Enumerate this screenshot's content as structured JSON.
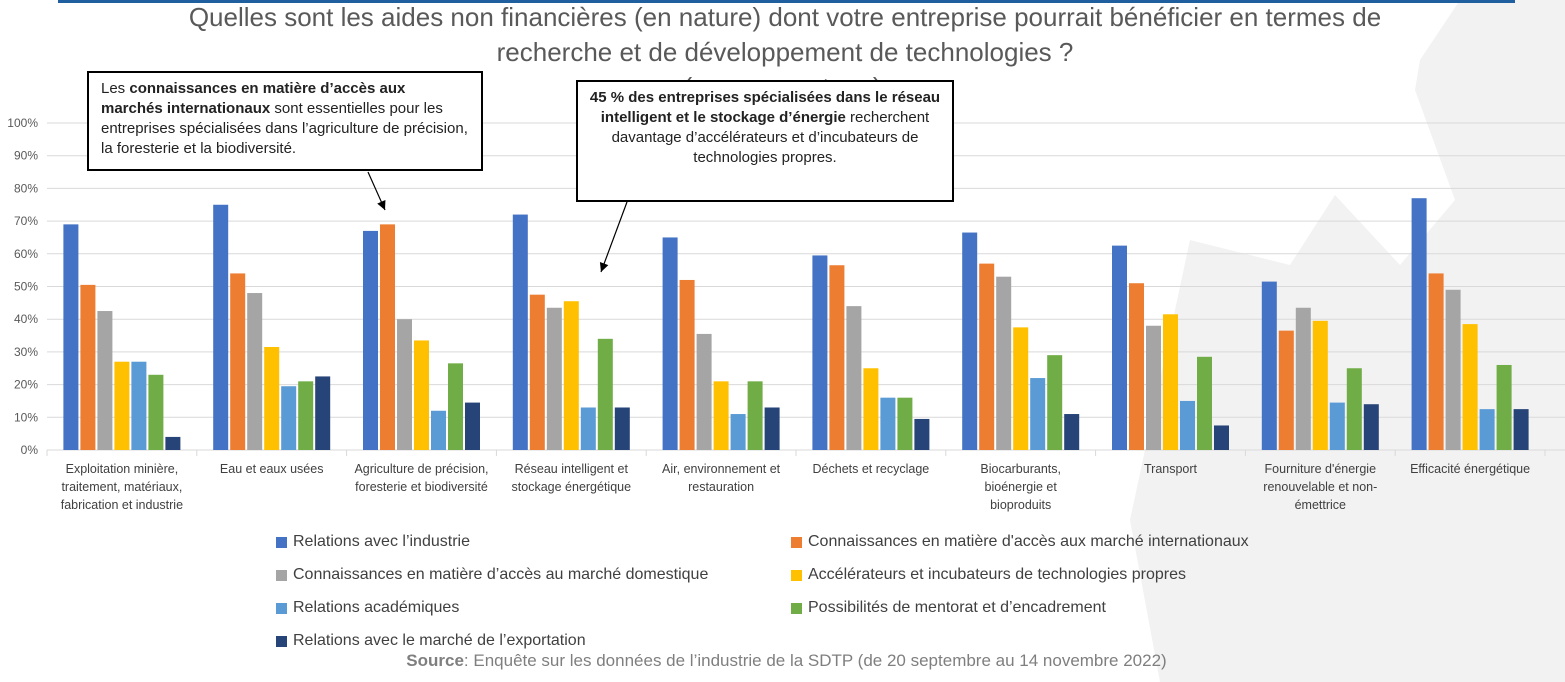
{
  "title": {
    "line1": "Quelles sont les aides non financières (en nature) dont votre entreprise pourrait bénéficier en termes de",
    "line2": "recherche et de développement de technologies ?",
    "line3": "(en pourcentage)"
  },
  "callouts": [
    {
      "parts": [
        {
          "text": "Les ",
          "bold": false
        },
        {
          "text": "connaissances en matière d’accès aux marchés internationaux",
          "bold": true
        },
        {
          "text": " sont essentielles pour les entreprises spécialisées dans l’agriculture de précision, la foresterie et la biodiversité.",
          "bold": false
        }
      ]
    },
    {
      "parts": [
        {
          "text": "45 % des entreprises spécialisées dans le réseau intelligent et le stockage d’énergie",
          "bold": true
        },
        {
          "text": " recherchent davantage d’accélérateurs et d’incubateurs de technologies propres.",
          "bold": false
        }
      ]
    }
  ],
  "source": {
    "label": "Source",
    "text": ": Enquête sur les données de l’industrie de la SDTP (de 20 septembre au 14 novembre 2022)"
  },
  "chart_data": {
    "type": "bar",
    "title": "Quelles sont les aides non financières (en nature) dont votre entreprise pourrait bénéficier en termes de recherche et de développement de technologies ?",
    "xlabel": "",
    "ylabel": "",
    "ylim": [
      0,
      100
    ],
    "yticks": [
      "0%",
      "10%",
      "20%",
      "30%",
      "40%",
      "50%",
      "60%",
      "70%",
      "80%",
      "90%",
      "100%"
    ],
    "grid": true,
    "legend_position": "bottom",
    "categories": [
      "Exploitation minière, traitement, matériaux, fabrication et industrie",
      "Eau et eaux usées",
      "Agriculture de précision, foresterie et biodiversité",
      "Réseau intelligent et stockage énergétique",
      "Air, environnement et restauration",
      "Déchets et recyclage",
      "Biocarburants, bioénergie et bioproduits",
      "Transport",
      "Fourniture d'énergie renouvelable et non-émettrice",
      "Efficacité énergétique"
    ],
    "category_lines": [
      [
        "Exploitation minière,",
        "traitement, matériaux,",
        "fabrication et industrie"
      ],
      [
        "Eau et eaux usées"
      ],
      [
        "Agriculture de précision,",
        "foresterie et biodiversité"
      ],
      [
        "Réseau intelligent et",
        "stockage énergétique"
      ],
      [
        "Air, environnement et",
        "restauration"
      ],
      [
        "Déchets et recyclage"
      ],
      [
        "Biocarburants,",
        "bioénergie et",
        "bioproduits"
      ],
      [
        "Transport"
      ],
      [
        "Fourniture d'énergie",
        "renouvelable et non-",
        "émettrice"
      ],
      [
        "Efficacité énergétique"
      ]
    ],
    "series": [
      {
        "name": "Relations avec l’industrie",
        "color": "#4472c4",
        "values": [
          69,
          75,
          67,
          72,
          65,
          59.5,
          66.5,
          62.5,
          51.5,
          77
        ]
      },
      {
        "name": "Connaissances en matière d'accès aux marché internationaux",
        "color": "#ed7d31",
        "values": [
          50.5,
          54,
          69,
          47.5,
          52,
          56.5,
          57,
          51,
          36.5,
          54
        ]
      },
      {
        "name": "Connaissances en matière d’accès au marché domestique",
        "color": "#a5a5a5",
        "values": [
          42.5,
          48,
          40,
          43.5,
          35.5,
          44,
          53,
          38,
          43.5,
          49
        ]
      },
      {
        "name": "Accélérateurs et incubateurs de technologies propres",
        "color": "#ffc000",
        "values": [
          27,
          31.5,
          33.5,
          45.5,
          21,
          25,
          37.5,
          41.5,
          39.5,
          38.5
        ]
      },
      {
        "name": "Relations académiques",
        "color": "#5b9bd5",
        "values": [
          27,
          19.5,
          12,
          13,
          11,
          16,
          22,
          15,
          14.5,
          12.5
        ]
      },
      {
        "name": "Possibilités de mentorat et d’encadrement",
        "color": "#70ad47",
        "values": [
          23,
          21,
          26.5,
          34,
          21,
          16,
          29,
          28.5,
          25,
          26
        ]
      },
      {
        "name": "Relations avec le marché de l’exportation",
        "color": "#264478",
        "values": [
          4,
          22.5,
          14.5,
          13,
          13,
          9.5,
          11,
          7.5,
          14,
          12.5
        ]
      }
    ]
  }
}
